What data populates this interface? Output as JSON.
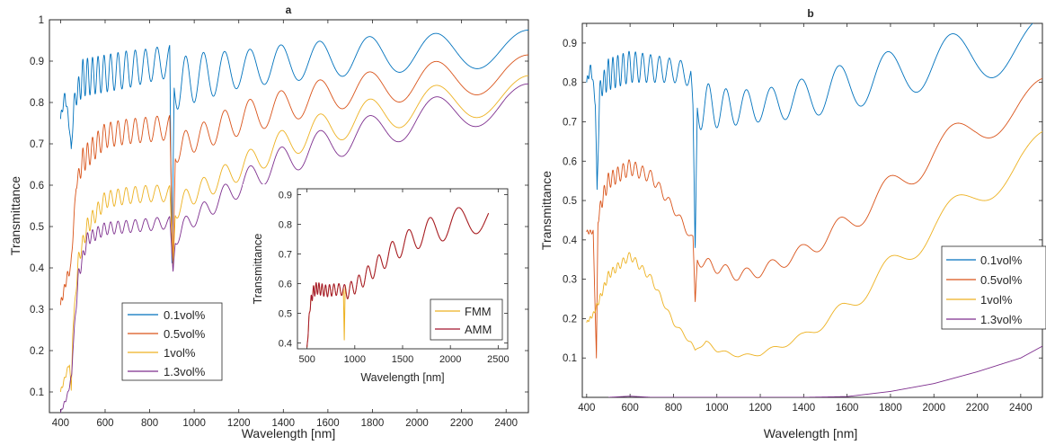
{
  "chart_data": [
    {
      "panel": "a",
      "type": "line",
      "title": "a",
      "xlabel": "Wavelength [nm]",
      "ylabel": "Transmittance",
      "xlim": [
        350,
        2500
      ],
      "ylim": [
        0.05,
        1.0
      ],
      "xticks": [
        400,
        600,
        800,
        1000,
        1200,
        1400,
        1600,
        1800,
        2000,
        2200,
        2400
      ],
      "yticks": [
        0.1,
        0.2,
        0.3,
        0.4,
        0.5,
        0.6,
        0.7,
        0.8,
        0.9,
        1
      ],
      "legend": {
        "placement": "lower-left"
      },
      "series": [
        {
          "name": "0.1vol%",
          "color": "#0072BD",
          "x": [
            400,
            420,
            440,
            448,
            460,
            500,
            600,
            700,
            800,
            890,
            900,
            910,
            950,
            1000,
            1200,
            1400,
            1600,
            1800,
            2000,
            2200,
            2400,
            2500
          ],
          "y": [
            0.76,
            0.82,
            0.74,
            0.68,
            0.8,
            0.86,
            0.87,
            0.88,
            0.89,
            0.9,
            0.4,
            0.84,
            0.85,
            0.86,
            0.88,
            0.895,
            0.905,
            0.915,
            0.92,
            0.925,
            0.93,
            0.93
          ],
          "osc_amp": [
            0.01,
            0.01,
            0.01,
            0.01,
            0.015,
            0.045,
            0.045,
            0.045,
            0.04,
            0.04,
            0.0,
            0.06,
            0.06,
            0.06,
            0.045,
            0.045,
            0.045,
            0.045,
            0.045,
            0.045,
            0.045,
            0.045
          ]
        },
        {
          "name": "0.5vol%",
          "color": "#D95319",
          "x": [
            400,
            430,
            446,
            452,
            470,
            500,
            600,
            700,
            800,
            890,
            905,
            915,
            950,
            1000,
            1200,
            1400,
            1600,
            1800,
            2000,
            2200,
            2400,
            2500
          ],
          "y": [
            0.31,
            0.38,
            0.4,
            0.45,
            0.6,
            0.66,
            0.72,
            0.73,
            0.735,
            0.74,
            0.4,
            0.68,
            0.7,
            0.71,
            0.76,
            0.79,
            0.82,
            0.835,
            0.85,
            0.86,
            0.87,
            0.87
          ],
          "osc_amp": [
            0.01,
            0.01,
            0.01,
            0.01,
            0.01,
            0.03,
            0.03,
            0.03,
            0.03,
            0.03,
            0.0,
            0.03,
            0.03,
            0.03,
            0.04,
            0.04,
            0.04,
            0.04,
            0.045,
            0.045,
            0.045,
            0.045
          ]
        },
        {
          "name": "1vol%",
          "color": "#EDB120",
          "x": [
            400,
            440,
            448,
            455,
            480,
            520,
            600,
            700,
            800,
            890,
            905,
            915,
            950,
            1000,
            1200,
            1400,
            1600,
            1800,
            2000,
            2200,
            2400,
            2500
          ],
          "y": [
            0.1,
            0.17,
            0.1,
            0.25,
            0.42,
            0.5,
            0.565,
            0.575,
            0.58,
            0.58,
            0.4,
            0.54,
            0.56,
            0.58,
            0.64,
            0.7,
            0.74,
            0.77,
            0.79,
            0.805,
            0.815,
            0.82
          ],
          "osc_amp": [
            0.005,
            0.005,
            0.005,
            0.005,
            0.015,
            0.02,
            0.02,
            0.02,
            0.02,
            0.02,
            0.0,
            0.025,
            0.025,
            0.025,
            0.03,
            0.035,
            0.04,
            0.04,
            0.045,
            0.045,
            0.045,
            0.045
          ]
        },
        {
          "name": "1.3vol%",
          "color": "#7E2F8E",
          "x": [
            400,
            430,
            450,
            455,
            480,
            520,
            600,
            700,
            800,
            890,
            905,
            915,
            950,
            1000,
            1200,
            1400,
            1600,
            1800,
            2000,
            2200,
            2400,
            2500
          ],
          "y": [
            0.05,
            0.09,
            0.14,
            0.2,
            0.38,
            0.47,
            0.495,
            0.5,
            0.505,
            0.51,
            0.39,
            0.47,
            0.5,
            0.52,
            0.6,
            0.66,
            0.7,
            0.73,
            0.76,
            0.78,
            0.8,
            0.8
          ],
          "osc_amp": [
            0.003,
            0.005,
            0.005,
            0.005,
            0.015,
            0.015,
            0.015,
            0.015,
            0.015,
            0.015,
            0.0,
            0.02,
            0.02,
            0.02,
            0.03,
            0.035,
            0.04,
            0.04,
            0.045,
            0.045,
            0.045,
            0.045
          ]
        }
      ],
      "inset": {
        "type": "line",
        "xlabel": "Wavelength [nm]",
        "ylabel": "Transmittance",
        "xlim": [
          400,
          2600
        ],
        "ylim": [
          0.38,
          0.92
        ],
        "xticks": [
          500,
          1000,
          1500,
          2000,
          2500
        ],
        "yticks": [
          0.4,
          0.5,
          0.6,
          0.7,
          0.8,
          0.9
        ],
        "legend": {
          "placement": "lower-right"
        },
        "series": [
          {
            "name": "FMM",
            "color": "#EDB120",
            "x": [
              500,
              530,
              560,
              600,
              700,
              800,
              880,
              890,
              900,
              910,
              950,
              1000,
              1200,
              1400,
              1600,
              1800,
              2000,
              2200,
              2400
            ],
            "y": [
              0.38,
              0.52,
              0.57,
              0.585,
              0.575,
              0.58,
              0.58,
              0.41,
              0.58,
              0.57,
              0.58,
              0.59,
              0.65,
              0.71,
              0.75,
              0.78,
              0.8,
              0.815,
              0.825
            ],
            "osc_amp": [
              0.005,
              0.015,
              0.02,
              0.02,
              0.02,
              0.02,
              0.02,
              0.0,
              0.02,
              0.025,
              0.025,
              0.025,
              0.03,
              0.035,
              0.04,
              0.045,
              0.05,
              0.05,
              0.05
            ]
          },
          {
            "name": "AMM",
            "color": "#A2142F",
            "x": [
              500,
              530,
              560,
              600,
              700,
              800,
              880,
              900,
              910,
              950,
              1000,
              1200,
              1400,
              1600,
              1800,
              2000,
              2200,
              2400
            ],
            "y": [
              0.38,
              0.52,
              0.57,
              0.585,
              0.575,
              0.58,
              0.58,
              0.575,
              0.57,
              0.58,
              0.59,
              0.65,
              0.71,
              0.75,
              0.78,
              0.8,
              0.815,
              0.825
            ],
            "osc_amp": [
              0.005,
              0.015,
              0.02,
              0.02,
              0.02,
              0.02,
              0.02,
              0.02,
              0.025,
              0.025,
              0.025,
              0.03,
              0.035,
              0.04,
              0.045,
              0.05,
              0.05,
              0.05
            ]
          }
        ]
      }
    },
    {
      "panel": "b",
      "type": "line",
      "title": "b",
      "xlabel": "Wavelength [nm]",
      "ylabel": "Transmittance",
      "xlim": [
        380,
        2500
      ],
      "ylim": [
        0.0,
        0.95
      ],
      "xticks": [
        400,
        600,
        800,
        1000,
        1200,
        1400,
        1600,
        1800,
        2000,
        2200,
        2400
      ],
      "yticks": [
        0.1,
        0.2,
        0.3,
        0.4,
        0.5,
        0.6,
        0.7,
        0.8,
        0.9
      ],
      "legend": {
        "placement": "right"
      },
      "series": [
        {
          "name": "0.1vol%",
          "color": "#0072BD",
          "x": [
            400,
            420,
            440,
            448,
            460,
            500,
            600,
            700,
            800,
            880,
            890,
            900,
            910,
            950,
            1000,
            1200,
            1400,
            1600,
            1800,
            2000,
            2200,
            2400,
            2500
          ],
          "y": [
            0.8,
            0.84,
            0.75,
            0.52,
            0.78,
            0.82,
            0.84,
            0.835,
            0.83,
            0.82,
            0.74,
            0.37,
            0.74,
            0.74,
            0.735,
            0.74,
            0.76,
            0.79,
            0.82,
            0.85,
            0.87,
            0.89,
            0.9
          ],
          "osc_amp": [
            0.01,
            0.01,
            0.01,
            0.01,
            0.02,
            0.04,
            0.04,
            0.035,
            0.03,
            0.03,
            0.0,
            0.0,
            0.06,
            0.06,
            0.05,
            0.04,
            0.05,
            0.06,
            0.06,
            0.065,
            0.065,
            0.065,
            0.065
          ]
        },
        {
          "name": "0.5vol%",
          "color": "#D95319",
          "x": [
            400,
            430,
            445,
            452,
            470,
            500,
            600,
            700,
            800,
            890,
            900,
            910,
            950,
            1000,
            1100,
            1200,
            1400,
            1600,
            1800,
            2000,
            2200,
            2400,
            2500
          ],
          "y": [
            0.42,
            0.42,
            0.1,
            0.45,
            0.5,
            0.55,
            0.585,
            0.56,
            0.48,
            0.4,
            0.24,
            0.35,
            0.34,
            0.33,
            0.31,
            0.32,
            0.37,
            0.44,
            0.53,
            0.62,
            0.69,
            0.74,
            0.76
          ],
          "osc_amp": [
            0.005,
            0.005,
            0.0,
            0.01,
            0.02,
            0.02,
            0.02,
            0.015,
            0.01,
            0.01,
            0.0,
            0.015,
            0.015,
            0.015,
            0.015,
            0.015,
            0.02,
            0.03,
            0.035,
            0.04,
            0.045,
            0.05,
            0.05
          ]
        },
        {
          "name": "1vol%",
          "color": "#EDB120",
          "x": [
            400,
            430,
            460,
            500,
            600,
            700,
            800,
            880,
            900,
            950,
            1000,
            1100,
            1200,
            1400,
            1600,
            1800,
            2000,
            2200,
            2400,
            2500
          ],
          "y": [
            0.19,
            0.21,
            0.25,
            0.31,
            0.36,
            0.3,
            0.19,
            0.14,
            0.12,
            0.14,
            0.12,
            0.105,
            0.11,
            0.155,
            0.23,
            0.33,
            0.43,
            0.52,
            0.6,
            0.63
          ],
          "osc_amp": [
            0.003,
            0.005,
            0.008,
            0.01,
            0.01,
            0.008,
            0.005,
            0.005,
            0.0,
            0.005,
            0.004,
            0.003,
            0.004,
            0.01,
            0.02,
            0.03,
            0.035,
            0.04,
            0.045,
            0.045
          ]
        },
        {
          "name": "1.3vol%",
          "color": "#7E2F8E",
          "x": [
            500,
            600,
            700,
            800,
            1200,
            1400,
            1600,
            1800,
            2000,
            2200,
            2400,
            2500
          ],
          "y": [
            0.0,
            0.003,
            0.0,
            0.0,
            0.0,
            0.0,
            0.002,
            0.015,
            0.035,
            0.065,
            0.1,
            0.13
          ],
          "osc_amp": [
            0.0,
            0.0,
            0.0,
            0.0,
            0.0,
            0.0,
            0.0,
            0.0,
            0.0,
            0.0,
            0.0,
            0.0
          ]
        }
      ]
    }
  ]
}
